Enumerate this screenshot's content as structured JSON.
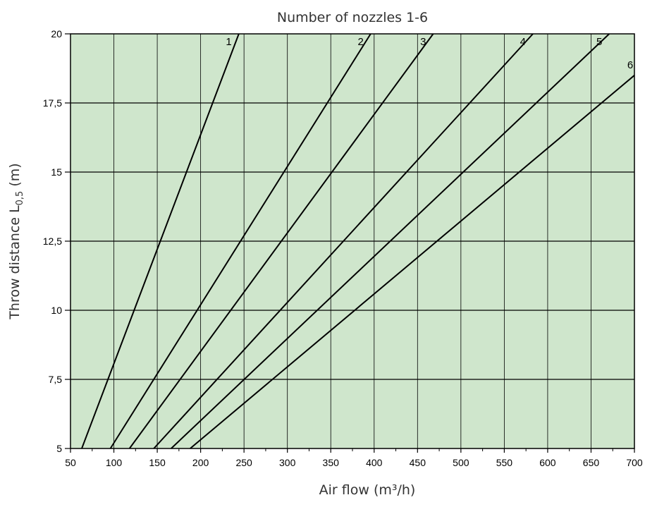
{
  "chart_data": {
    "type": "line",
    "title": "Number of nozzles 1-6",
    "xlabel": "Air flow (m³/h)",
    "ylabel": {
      "prefix": "Throw distance L",
      "subscript": "0,5",
      "suffix": " (m)"
    },
    "xlim": [
      50,
      700
    ],
    "ylim": [
      5,
      20
    ],
    "x_ticks": [
      50,
      100,
      150,
      200,
      250,
      300,
      350,
      400,
      450,
      500,
      550,
      600,
      650,
      700
    ],
    "y_ticks": [
      {
        "value": 5,
        "label": "5"
      },
      {
        "value": 7.5,
        "label": "7,5"
      },
      {
        "value": 10,
        "label": "10"
      },
      {
        "value": 12.5,
        "label": "12,5"
      },
      {
        "value": 15,
        "label": "15"
      },
      {
        "value": 17.5,
        "label": "17,5"
      },
      {
        "value": 20,
        "label": "20"
      }
    ],
    "x_minor_ticks": [
      75,
      125,
      175,
      225,
      275,
      325,
      375,
      425,
      475,
      525,
      575,
      625,
      675
    ],
    "grid": true,
    "series": [
      {
        "name": "1",
        "x": [
          63,
          244
        ],
        "y": [
          5,
          20
        ]
      },
      {
        "name": "2",
        "x": [
          96,
          396
        ],
        "y": [
          5,
          20
        ]
      },
      {
        "name": "3",
        "x": [
          118,
          468
        ],
        "y": [
          5,
          20
        ]
      },
      {
        "name": "4",
        "x": [
          146,
          583
        ],
        "y": [
          5,
          20
        ]
      },
      {
        "name": "5",
        "x": [
          166,
          671
        ],
        "y": [
          5,
          20
        ]
      },
      {
        "name": "6",
        "x": [
          188,
          700
        ],
        "y": [
          5,
          18.5
        ]
      }
    ]
  },
  "colors": {
    "plot_background": "#cfe6cc",
    "grid": "#000000",
    "lines": "#000000"
  }
}
